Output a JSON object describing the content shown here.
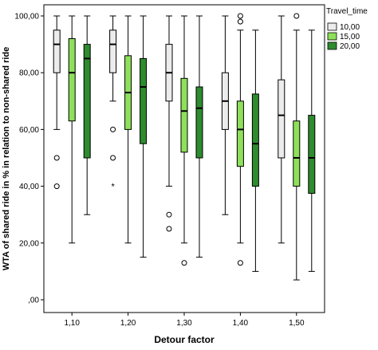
{
  "chart_data": {
    "type": "boxplot",
    "xlabel": "Detour factor",
    "ylabel": "WTA of shared ride in % in relation to non-shared ride",
    "categories": [
      "1,10",
      "1,20",
      "1,30",
      "1,40",
      "1,50"
    ],
    "y_ticks": [
      ",00",
      "20,00",
      "40,00",
      "60,00",
      "80,00",
      "100,00"
    ],
    "ylim": [
      -5,
      103
    ],
    "grid": false,
    "legend_title": "Travel_time",
    "legend_position": "top-right",
    "series": [
      {
        "name": "10,00",
        "color": "#ececec",
        "boxes": [
          {
            "min": 60,
            "q1": 80,
            "median": 90,
            "q3": 95,
            "max": 100,
            "outliers": [
              50,
              40
            ],
            "extremes": []
          },
          {
            "min": 70,
            "q1": 80,
            "median": 90,
            "q3": 95,
            "max": 100,
            "outliers": [
              60,
              50
            ],
            "extremes": [
              40
            ]
          },
          {
            "min": 40,
            "q1": 70,
            "median": 80,
            "q3": 90,
            "max": 100,
            "outliers": [
              30,
              25
            ],
            "extremes": []
          },
          {
            "min": 30,
            "q1": 60,
            "median": 70,
            "q3": 80,
            "max": 100,
            "outliers": [],
            "extremes": []
          },
          {
            "min": 20,
            "q1": 50,
            "median": 65,
            "q3": 77.5,
            "max": 100,
            "outliers": [],
            "extremes": []
          }
        ]
      },
      {
        "name": "15,00",
        "color": "#8ee05a",
        "boxes": [
          {
            "min": 20,
            "q1": 63,
            "median": 80,
            "q3": 92,
            "max": 100,
            "outliers": [],
            "extremes": []
          },
          {
            "min": 20,
            "q1": 60,
            "median": 73,
            "q3": 86,
            "max": 100,
            "outliers": [],
            "extremes": []
          },
          {
            "min": 20,
            "q1": 52,
            "median": 66.5,
            "q3": 78,
            "max": 100,
            "outliers": [
              13
            ],
            "extremes": []
          },
          {
            "min": 20,
            "q1": 47,
            "median": 60,
            "q3": 70,
            "max": 95,
            "outliers": [
              100,
              98,
              13
            ],
            "extremes": []
          },
          {
            "min": 7,
            "q1": 40,
            "median": 50,
            "q3": 63,
            "max": 95,
            "outliers": [
              100
            ],
            "extremes": []
          }
        ]
      },
      {
        "name": "20,00",
        "color": "#2e8b2e",
        "boxes": [
          {
            "min": 30,
            "q1": 50,
            "median": 85,
            "q3": 90,
            "max": 100,
            "outliers": [],
            "extremes": []
          },
          {
            "min": 15,
            "q1": 55,
            "median": 75,
            "q3": 85,
            "max": 100,
            "outliers": [],
            "extremes": []
          },
          {
            "min": 15,
            "q1": 50,
            "median": 67.5,
            "q3": 75,
            "max": 100,
            "outliers": [],
            "extremes": []
          },
          {
            "min": 10,
            "q1": 40,
            "median": 55,
            "q3": 72.5,
            "max": 95,
            "outliers": [],
            "extremes": []
          },
          {
            "min": 10,
            "q1": 37.5,
            "median": 50,
            "q3": 65,
            "max": 95,
            "outliers": [],
            "extremes": []
          }
        ]
      }
    ]
  }
}
